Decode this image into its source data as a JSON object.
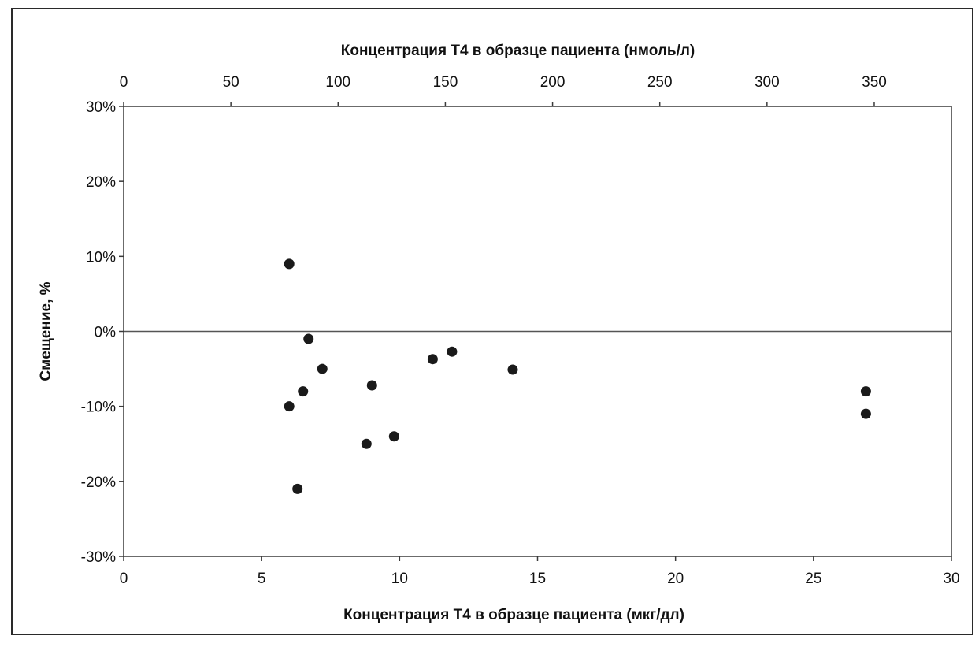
{
  "chart_data": {
    "type": "scatter",
    "title": "",
    "xlabel": "Концентрация Т4 в образце пациента (мкг/дл)",
    "x2label": "Концентрация Т4 в образце пациента (нмоль/л)",
    "ylabel": "Смещение, %",
    "xlim": [
      0,
      30
    ],
    "x2lim": [
      0,
      386
    ],
    "ylim": [
      -30,
      30
    ],
    "x_ticks": [
      0,
      5,
      10,
      15,
      20,
      25,
      30
    ],
    "x2_ticks": [
      0,
      50,
      100,
      150,
      200,
      250,
      300,
      350
    ],
    "y_ticks": [
      -30,
      -20,
      -10,
      0,
      10,
      20,
      30
    ],
    "y_tick_labels": [
      "-30%",
      "-20%",
      "-10%",
      "0%",
      "10%",
      "20%",
      "30%"
    ],
    "reference_line_y": 0,
    "grid": false,
    "marker_color": "#1a1a1a",
    "points": [
      {
        "x": 6.0,
        "y": 9.0
      },
      {
        "x": 6.0,
        "y": -10.0
      },
      {
        "x": 6.3,
        "y": -21.0
      },
      {
        "x": 6.5,
        "y": -8.0
      },
      {
        "x": 6.7,
        "y": -1.0
      },
      {
        "x": 7.2,
        "y": -5.0
      },
      {
        "x": 8.8,
        "y": -15.0
      },
      {
        "x": 9.0,
        "y": -7.2
      },
      {
        "x": 9.8,
        "y": -14.0
      },
      {
        "x": 11.2,
        "y": -3.7
      },
      {
        "x": 11.9,
        "y": -2.7
      },
      {
        "x": 14.1,
        "y": -5.1
      },
      {
        "x": 26.9,
        "y": -8.0
      },
      {
        "x": 26.9,
        "y": -11.0
      }
    ]
  }
}
